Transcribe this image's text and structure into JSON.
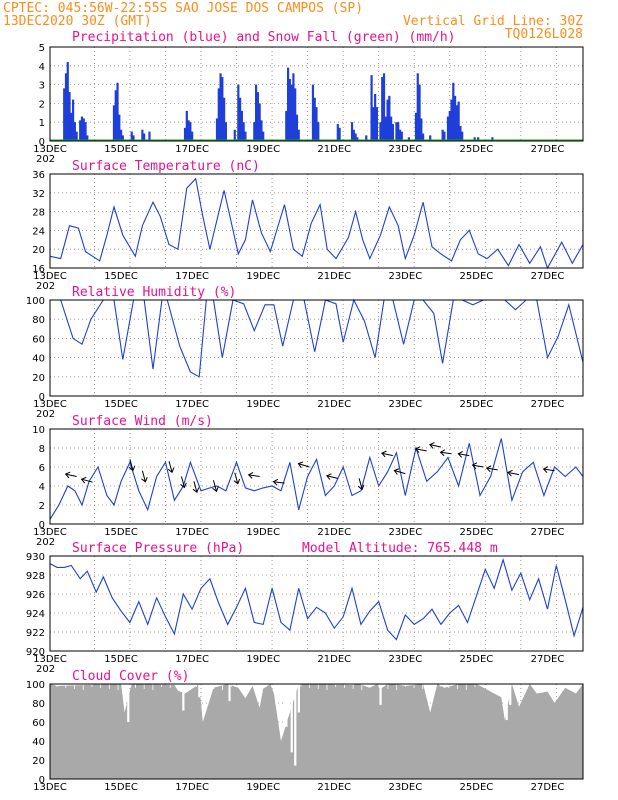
{
  "header": {
    "line1_left": "CPTEC:  045:56W-22:55S  SAO JOSE DOS CAMPOS (SP)",
    "line2_left": "13DEC2020 30Z (GMT)",
    "line2_right": "Vertical Grid Line: 30Z",
    "code": "TQ0126L028"
  },
  "colors": {
    "header": "#ff8c1a",
    "title": "#e8128c",
    "series": "#1f3fd9",
    "snow": "#18a018",
    "cloud": "#a9a9a9"
  },
  "x_ticks": [
    "13DEC",
    "15DEC",
    "17DEC",
    "19DEC",
    "21DEC",
    "23DEC",
    "25DEC",
    "27DEC"
  ],
  "year_stub": "202",
  "chart_data": [
    {
      "id": "precip",
      "type": "bar",
      "title": "Precipitation (blue) and Snow Fall (green) (mm/h)",
      "ylim": [
        0,
        5
      ],
      "yticks": [
        "0",
        "1",
        "2",
        "3",
        "4",
        "5"
      ],
      "x_unit": "days since 13DEC 00Z",
      "bars": [
        [
          0.4,
          2.8
        ],
        [
          0.45,
          3.6
        ],
        [
          0.5,
          4.2
        ],
        [
          0.55,
          2.6
        ],
        [
          0.6,
          1.5
        ],
        [
          0.65,
          2.2
        ],
        [
          0.7,
          1.0
        ],
        [
          0.75,
          0.5
        ],
        [
          0.85,
          1.1
        ],
        [
          0.9,
          1.3
        ],
        [
          0.95,
          1.2
        ],
        [
          1.0,
          1.0
        ],
        [
          1.05,
          0.3
        ],
        [
          1.8,
          1.9
        ],
        [
          1.85,
          2.7
        ],
        [
          1.9,
          3.1
        ],
        [
          1.95,
          1.4
        ],
        [
          2.0,
          0.6
        ],
        [
          2.05,
          0.3
        ],
        [
          2.3,
          0.5
        ],
        [
          2.35,
          0.3
        ],
        [
          2.6,
          0.6
        ],
        [
          2.65,
          0.4
        ],
        [
          2.8,
          0.5
        ],
        [
          3.8,
          0.7
        ],
        [
          3.85,
          1.6
        ],
        [
          3.9,
          1.1
        ],
        [
          3.95,
          1.0
        ],
        [
          4.0,
          0.5
        ],
        [
          4.7,
          1.2
        ],
        [
          4.75,
          2.8
        ],
        [
          4.8,
          3.6
        ],
        [
          4.85,
          3.4
        ],
        [
          4.9,
          2.3
        ],
        [
          4.95,
          1.0
        ],
        [
          5.2,
          0.6
        ],
        [
          5.3,
          3.0
        ],
        [
          5.35,
          2.3
        ],
        [
          5.4,
          1.6
        ],
        [
          5.45,
          1.0
        ],
        [
          5.5,
          0.5
        ],
        [
          5.75,
          1.0
        ],
        [
          5.8,
          3.0
        ],
        [
          5.85,
          2.6
        ],
        [
          5.9,
          2.0
        ],
        [
          5.95,
          1.1
        ],
        [
          6.0,
          0.5
        ],
        [
          6.65,
          1.6
        ],
        [
          6.7,
          3.9
        ],
        [
          6.75,
          3.3
        ],
        [
          6.8,
          3.0
        ],
        [
          6.85,
          3.6
        ],
        [
          6.9,
          2.8
        ],
        [
          6.95,
          1.4
        ],
        [
          7.0,
          0.6
        ],
        [
          7.4,
          3.0
        ],
        [
          7.45,
          2.3
        ],
        [
          7.5,
          1.8
        ],
        [
          7.55,
          1.0
        ],
        [
          8.1,
          0.9
        ],
        [
          8.15,
          0.7
        ],
        [
          8.5,
          1.0
        ],
        [
          8.55,
          0.6
        ],
        [
          8.6,
          0.4
        ],
        [
          8.65,
          0.2
        ],
        [
          8.9,
          0.3
        ],
        [
          9.05,
          3.5
        ],
        [
          9.1,
          1.8
        ],
        [
          9.15,
          2.5
        ],
        [
          9.2,
          1.8
        ],
        [
          9.3,
          1.0
        ],
        [
          9.35,
          3.4
        ],
        [
          9.4,
          3.6
        ],
        [
          9.45,
          1.3
        ],
        [
          9.5,
          2.2
        ],
        [
          9.55,
          2.4
        ],
        [
          9.6,
          1.3
        ],
        [
          9.65,
          0.9
        ],
        [
          9.75,
          1.0
        ],
        [
          9.8,
          1.0
        ],
        [
          9.85,
          0.6
        ],
        [
          9.9,
          0.5
        ],
        [
          10.1,
          0.2
        ],
        [
          10.3,
          1.5
        ],
        [
          10.35,
          3.6
        ],
        [
          10.4,
          3.0
        ],
        [
          10.45,
          1.2
        ],
        [
          10.5,
          0.4
        ],
        [
          10.7,
          0.3
        ],
        [
          11.05,
          0.6
        ],
        [
          11.1,
          0.5
        ],
        [
          11.2,
          1.3
        ],
        [
          11.25,
          1.6
        ],
        [
          11.3,
          2.2
        ],
        [
          11.35,
          3.1
        ],
        [
          11.4,
          2.4
        ],
        [
          11.45,
          1.9
        ],
        [
          11.5,
          2.1
        ],
        [
          11.55,
          0.8
        ],
        [
          11.6,
          0.5
        ],
        [
          11.95,
          0.2
        ],
        [
          12.05,
          0.2
        ],
        [
          12.45,
          0.2
        ]
      ],
      "snow": "0 throughout"
    },
    {
      "id": "temp",
      "type": "line",
      "title": "Surface Temperature (nC)",
      "ylim": [
        16,
        36
      ],
      "yticks": [
        "16",
        "20",
        "24",
        "28",
        "32",
        "36"
      ],
      "x": [
        0,
        0.3,
        0.55,
        0.8,
        1.0,
        1.4,
        1.6,
        1.8,
        2.05,
        2.4,
        2.6,
        2.9,
        3.1,
        3.35,
        3.6,
        3.85,
        4.1,
        4.3,
        4.5,
        4.9,
        5.3,
        5.5,
        5.7,
        5.95,
        6.2,
        6.6,
        6.85,
        7.1,
        7.35,
        7.6,
        7.8,
        8.05,
        8.4,
        8.6,
        8.8,
        9.0,
        9.3,
        9.55,
        9.8,
        10.0,
        10.25,
        10.5,
        10.75,
        11.0,
        11.3,
        11.55,
        11.8,
        12.05,
        12.3,
        12.6,
        12.9,
        13.2,
        13.5,
        13.8,
        14.0,
        14.4,
        14.7,
        15.0
      ],
      "values": [
        18.5,
        18,
        25,
        24.5,
        19.5,
        17.5,
        23,
        29,
        23,
        18.5,
        25,
        30,
        27,
        21,
        20,
        33,
        35,
        27,
        20,
        32.5,
        19,
        22,
        30.5,
        23.5,
        19.5,
        29.5,
        20,
        18.5,
        25.5,
        29.5,
        20,
        18,
        22.5,
        28,
        22,
        18,
        23,
        29,
        25,
        18,
        23,
        30,
        20.5,
        19,
        17.5,
        22,
        24,
        19,
        18,
        20,
        16.5,
        21,
        17,
        20.5,
        16,
        21.5,
        17,
        21
      ]
    },
    {
      "id": "rh",
      "type": "line",
      "title": "Relative Humidity (%)",
      "ylim": [
        0,
        100
      ],
      "yticks": [
        "0",
        "20",
        "40",
        "60",
        "80",
        "100"
      ],
      "x": [
        0,
        0.3,
        0.65,
        0.9,
        1.15,
        1.5,
        1.8,
        2.05,
        2.35,
        2.65,
        2.9,
        3.15,
        3.3,
        3.65,
        3.95,
        4.2,
        4.4,
        4.6,
        4.85,
        5.15,
        5.45,
        5.75,
        6.05,
        6.3,
        6.55,
        6.85,
        7.15,
        7.45,
        7.75,
        8.05,
        8.25,
        8.55,
        8.85,
        9.15,
        9.4,
        9.65,
        9.95,
        10.25,
        10.5,
        10.8,
        11.05,
        11.35,
        11.6,
        11.9,
        12.2,
        12.5,
        12.8,
        13.1,
        13.4,
        13.7,
        14.0,
        14.3,
        14.6,
        15.0
      ],
      "values": [
        100,
        100,
        60,
        54,
        80,
        100,
        100,
        38,
        100,
        100,
        28,
        100,
        100,
        52,
        25,
        20,
        100,
        100,
        40,
        100,
        96,
        68,
        95,
        95,
        52,
        100,
        100,
        46,
        100,
        96,
        56,
        100,
        78,
        40,
        100,
        100,
        54,
        100,
        100,
        86,
        34,
        100,
        100,
        95,
        100,
        100,
        100,
        90,
        100,
        100,
        40,
        62,
        95,
        35
      ]
    },
    {
      "id": "wind",
      "type": "line",
      "title": "Surface Wind (m/s)",
      "ylim": [
        0,
        10
      ],
      "yticks": [
        "0",
        "2",
        "4",
        "6",
        "8",
        "10"
      ],
      "x": [
        0,
        0.25,
        0.5,
        0.7,
        0.9,
        1.1,
        1.35,
        1.6,
        1.8,
        2.0,
        2.25,
        2.5,
        2.75,
        3.0,
        3.25,
        3.5,
        3.75,
        3.95,
        4.25,
        4.5,
        4.7,
        4.95,
        5.25,
        5.5,
        5.75,
        6.0,
        6.25,
        6.5,
        6.75,
        7.0,
        7.25,
        7.5,
        7.75,
        8.0,
        8.25,
        8.5,
        8.75,
        9.0,
        9.25,
        9.5,
        9.75,
        10.0,
        10.3,
        10.6,
        10.9,
        11.2,
        11.5,
        11.8,
        12.1,
        12.4,
        12.7,
        13.0,
        13.3,
        13.6,
        13.9,
        14.2,
        14.5,
        14.8,
        15.0
      ],
      "values": [
        0.5,
        2,
        4,
        3.5,
        2,
        4.5,
        6,
        3,
        2,
        4.5,
        6.5,
        3.5,
        1.5,
        5,
        6.5,
        2.5,
        4,
        6.5,
        3.5,
        3.8,
        4,
        3.5,
        6.5,
        3.8,
        3.5,
        3.8,
        4,
        3.5,
        6.5,
        1.5,
        5,
        6.8,
        3,
        4,
        6,
        3,
        3.5,
        7,
        4,
        5.5,
        7.5,
        3,
        8,
        4.5,
        5.5,
        7,
        4,
        8.5,
        3,
        5,
        9,
        2.5,
        5.5,
        6.5,
        3,
        6,
        5,
        6,
        5
      ]
    },
    {
      "id": "pressure",
      "type": "line",
      "title": "Surface Pressure (hPa)",
      "annotation": "Model Altitude: 765.448  m",
      "ylim": [
        920,
        930
      ],
      "yticks": [
        "920",
        "922",
        "924",
        "926",
        "928",
        "930"
      ],
      "x": [
        0,
        0.2,
        0.4,
        0.6,
        0.85,
        1.05,
        1.3,
        1.5,
        1.75,
        2.0,
        2.25,
        2.5,
        2.75,
        3.0,
        3.25,
        3.5,
        3.75,
        4.0,
        4.25,
        4.5,
        4.75,
        5.0,
        5.25,
        5.5,
        5.75,
        6.0,
        6.25,
        6.5,
        6.75,
        7.0,
        7.25,
        7.5,
        7.75,
        8.0,
        8.25,
        8.5,
        8.75,
        9.0,
        9.25,
        9.5,
        9.75,
        10.0,
        10.25,
        10.5,
        10.75,
        11.0,
        11.25,
        11.5,
        11.75,
        12.0,
        12.25,
        12.5,
        12.75,
        13.0,
        13.25,
        13.5,
        13.75,
        14.0,
        14.25,
        14.5,
        14.75,
        15.0
      ],
      "values": [
        929.2,
        928.8,
        928.8,
        929,
        927.6,
        928.4,
        926.2,
        927.8,
        925.6,
        924.2,
        923,
        925.2,
        922.8,
        925.6,
        923.6,
        921.8,
        926,
        924.4,
        926.6,
        927.6,
        925,
        922.8,
        924.6,
        926.6,
        923,
        922.8,
        926.6,
        923,
        922.2,
        926.6,
        923.4,
        924.6,
        924,
        922.4,
        923.6,
        926.6,
        922.8,
        924.2,
        925.2,
        922.2,
        921.2,
        923.8,
        922.8,
        923.4,
        924.4,
        922.8,
        924,
        924.8,
        923,
        925.8,
        928.6,
        926.6,
        929.6,
        926.4,
        928.2,
        925.4,
        927.6,
        924.4,
        929,
        925.4,
        921.6,
        924.6
      ]
    },
    {
      "id": "cloud",
      "type": "area",
      "title": "Cloud Cover (%)",
      "ylim": [
        0,
        100
      ],
      "yticks": [
        "0",
        "20",
        "40",
        "60",
        "80",
        "100"
      ],
      "x": [
        0,
        0.2,
        1.0,
        2.0,
        2.1,
        2.3,
        3.5,
        3.6,
        3.8,
        4.2,
        4.3,
        4.6,
        5.0,
        5.3,
        5.5,
        5.7,
        5.9,
        6.0,
        6.2,
        6.3,
        6.5,
        7.0,
        8.5,
        8.7,
        9.0,
        9.2,
        9.3,
        9.5,
        9.7,
        10.0,
        10.5,
        10.7,
        10.9,
        11.1,
        11.5,
        12.0,
        12.7,
        12.8,
        13.0,
        13.2,
        13.5,
        13.7,
        14.0,
        14.2,
        14.5,
        14.8,
        15.0
      ],
      "values": [
        100,
        98,
        99,
        100,
        70,
        100,
        99,
        93,
        90,
        100,
        60,
        96,
        100,
        96,
        85,
        98,
        75,
        95,
        100,
        90,
        40,
        100,
        99,
        100,
        96,
        100,
        95,
        100,
        100,
        98,
        100,
        70,
        100,
        96,
        100,
        100,
        86,
        62,
        100,
        76,
        100,
        90,
        92,
        80,
        96,
        90,
        100
      ],
      "dips": [
        [
          2.2,
          60
        ],
        [
          3.75,
          72
        ],
        [
          4.2,
          86
        ],
        [
          5.05,
          82
        ],
        [
          6.65,
          55
        ],
        [
          6.8,
          28
        ],
        [
          6.9,
          14
        ],
        [
          7.0,
          70
        ],
        [
          9.3,
          78
        ],
        [
          12.85,
          62
        ],
        [
          12.95,
          78
        ]
      ]
    }
  ]
}
